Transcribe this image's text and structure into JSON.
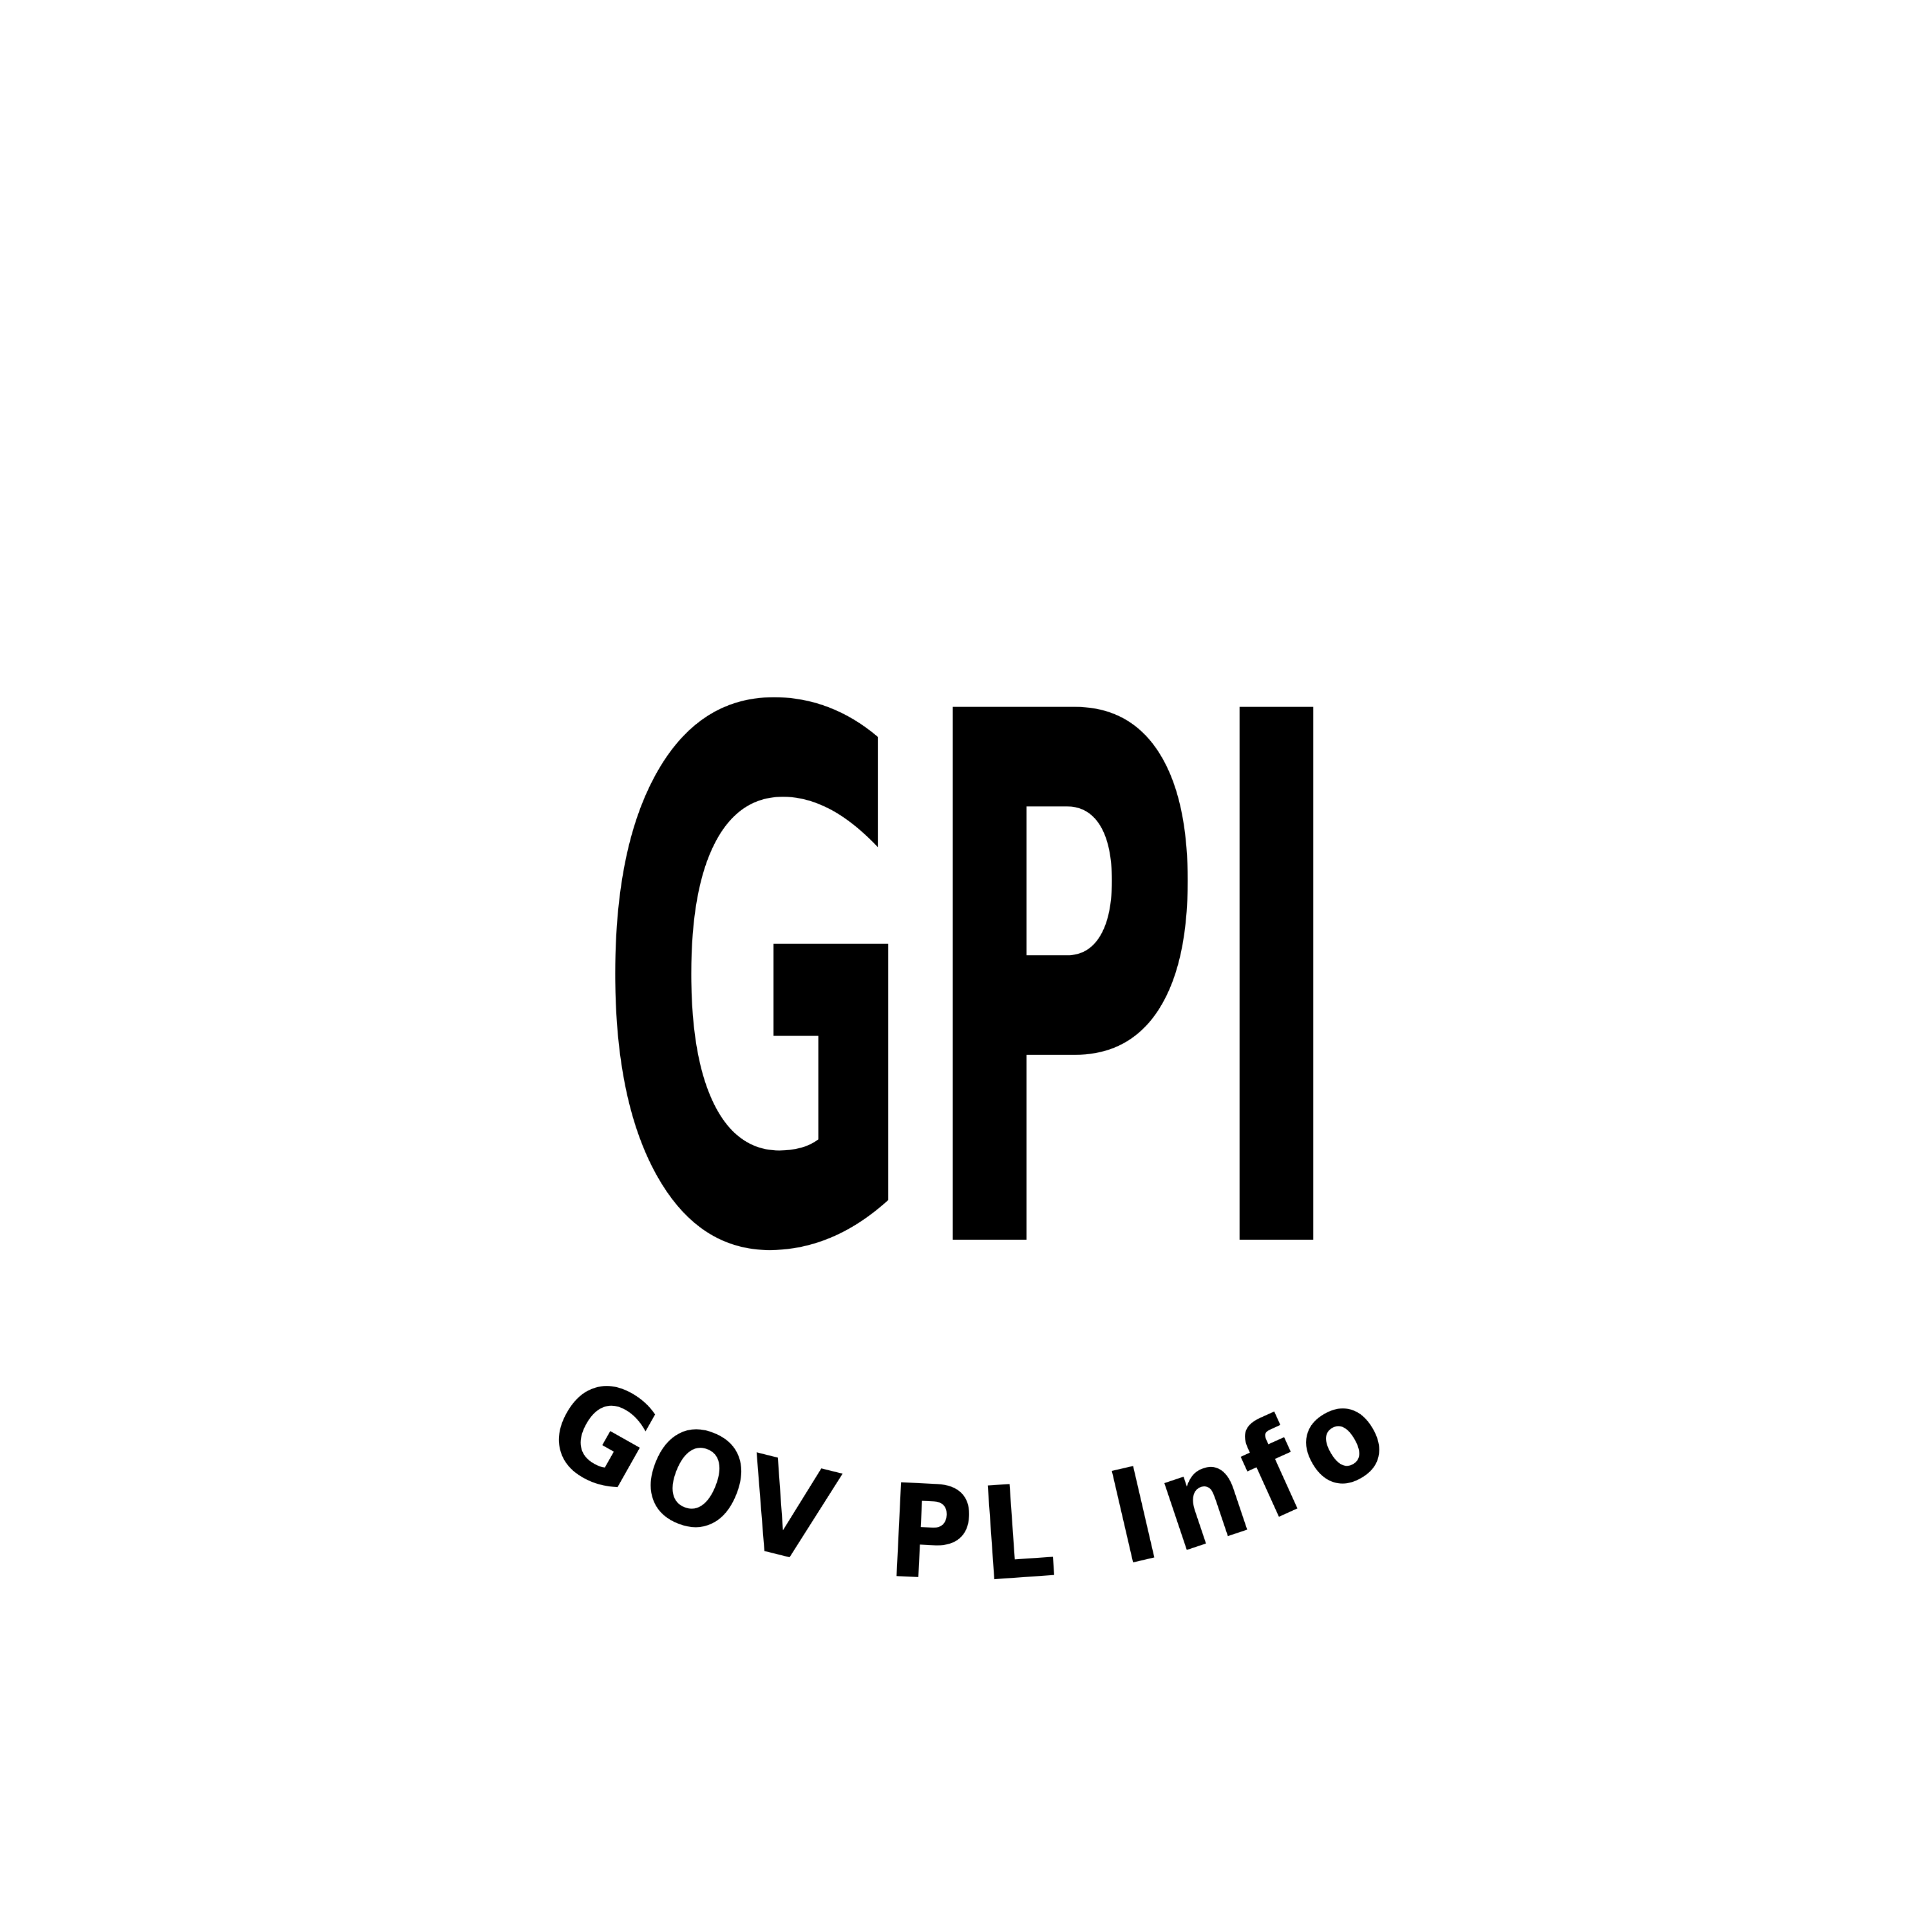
{
  "logo": {
    "main_text": "GPI",
    "arc_text": "GOV PL Info",
    "colors": {
      "background": "#ffffff",
      "ink": "#000000"
    }
  }
}
